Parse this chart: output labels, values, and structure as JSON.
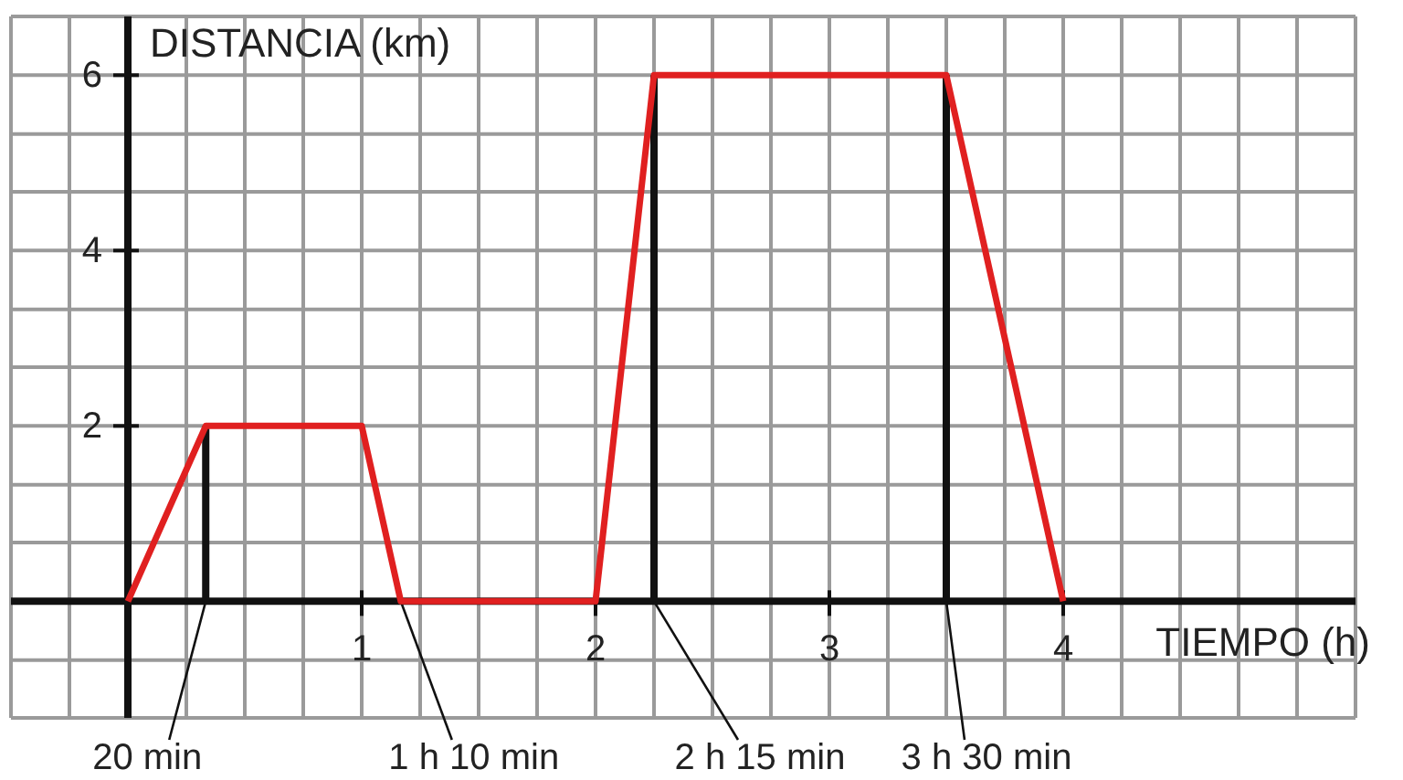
{
  "chart_data": {
    "type": "line",
    "xlabel": "TIEMPO (h)",
    "ylabel": "DISTANCIA (km)",
    "x": [
      0,
      0.333,
      1,
      1.167,
      2,
      2.25,
      3.5,
      4
    ],
    "series": [
      {
        "color": "#e02020",
        "values": [
          0,
          2,
          2,
          0,
          0,
          6,
          6,
          0
        ]
      }
    ],
    "xlim": [
      -0.5,
      5.25
    ],
    "ylim": [
      -1.33,
      6.67
    ],
    "xticks": [
      {
        "value": -0.5,
        "label": null
      },
      {
        "value": -0.25,
        "label": null
      },
      {
        "value": 0,
        "label": null
      },
      {
        "value": 0.25,
        "label": null
      },
      {
        "value": 0.5,
        "label": null
      },
      {
        "value": 0.75,
        "label": null
      },
      1,
      {
        "value": 1.25,
        "label": null
      },
      {
        "value": 1.5,
        "label": null
      },
      {
        "value": 1.75,
        "label": null
      },
      2,
      {
        "value": 2.25,
        "label": null
      },
      {
        "value": 2.5,
        "label": null
      },
      {
        "value": 2.75,
        "label": null
      },
      3,
      {
        "value": 3.25,
        "label": null
      },
      {
        "value": 3.5,
        "label": null
      },
      {
        "value": 3.75,
        "label": null
      },
      4,
      {
        "value": 4.25,
        "label": null
      },
      {
        "value": 4.5,
        "label": null
      },
      {
        "value": 4.75,
        "label": null
      },
      {
        "value": 5,
        "label": null
      },
      {
        "value": 5.25,
        "label": null
      }
    ],
    "yticks": [
      {
        "value": -1.33,
        "label": null
      },
      {
        "value": -0.67,
        "label": null
      },
      {
        "value": 0,
        "label": null
      },
      {
        "value": 0.67,
        "label": null
      },
      {
        "value": 1.33,
        "label": null
      },
      2,
      {
        "value": 2.67,
        "label": null
      },
      {
        "value": 3.33,
        "label": null
      },
      4,
      {
        "value": 4.67,
        "label": null
      },
      {
        "value": 5.33,
        "label": null
      },
      6,
      {
        "value": 6.67,
        "label": null
      }
    ],
    "grid": true,
    "marker": "none",
    "line_style": "solid",
    "annotations": [
      {
        "text": "20 min",
        "x": 0.333,
        "y": 2
      },
      {
        "text": "1 h 10 min",
        "x": 1.167,
        "y": 0
      },
      {
        "text": "2 h 15 min",
        "x": 2.25,
        "y": 6
      },
      {
        "text": "3 h 30 min",
        "x": 3.5,
        "y": 6
      }
    ]
  }
}
